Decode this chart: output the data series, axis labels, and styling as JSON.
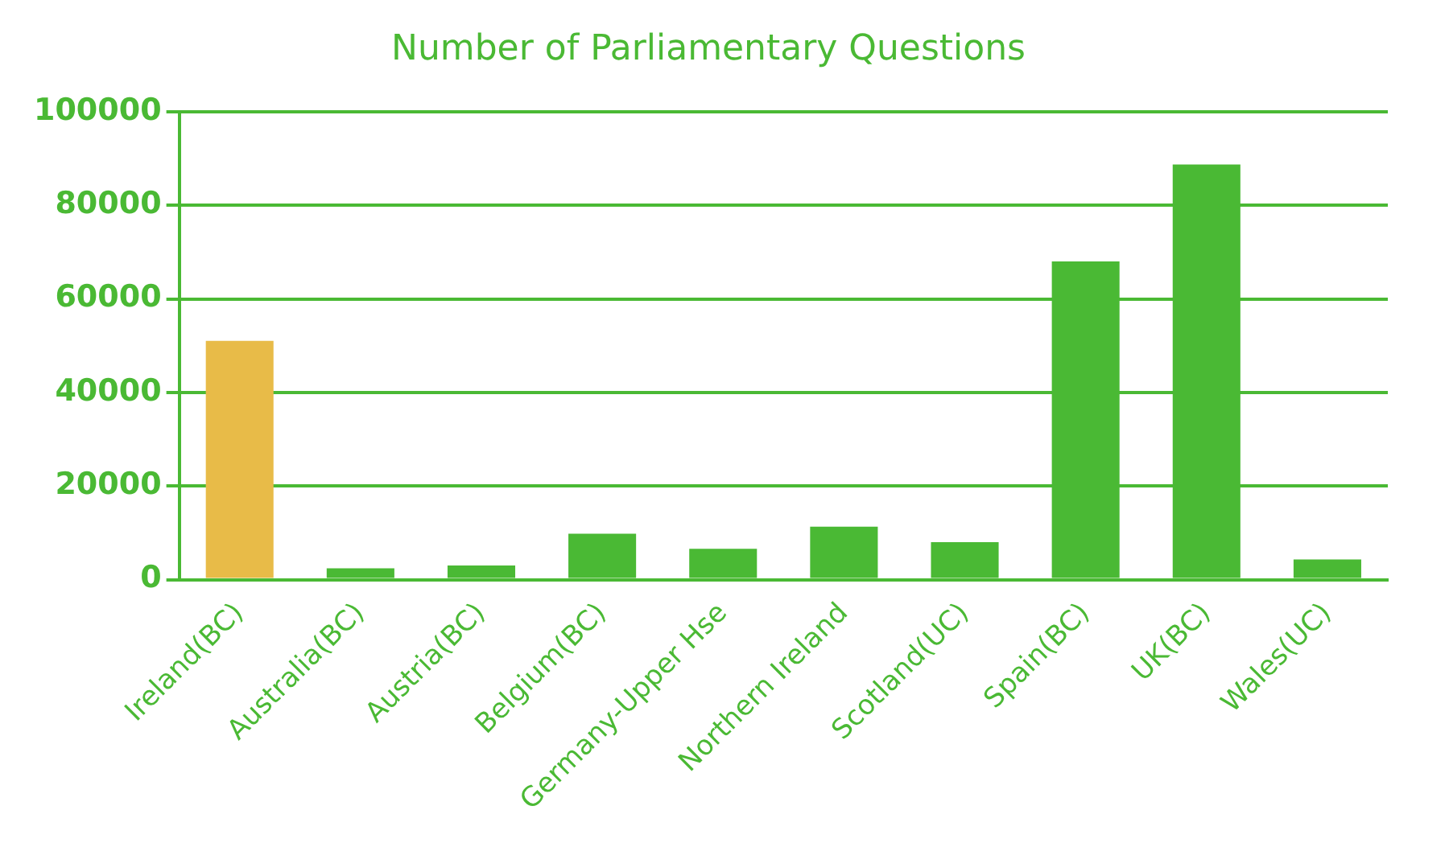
{
  "chart_data": {
    "type": "bar",
    "title": "Number of Parliamentary Questions",
    "categories": [
      "Ireland(BC)",
      "Australia(BC)",
      "Austria(BC)",
      "Belgium(BC)",
      "Germany-Upper Hse",
      "Northern Ireland",
      "Scotland(UC)",
      "Spain(BC)",
      "UK(BC)",
      "Wales(UC)"
    ],
    "values": [
      51000,
      2400,
      3000,
      9800,
      6600,
      11300,
      8000,
      68000,
      88700,
      4300
    ],
    "colors": [
      "#e8bb48",
      "#4ab934",
      "#4ab934",
      "#4ab934",
      "#4ab934",
      "#4ab934",
      "#4ab934",
      "#4ab934",
      "#4ab934",
      "#4ab934"
    ],
    "ylim": [
      0,
      100000
    ],
    "yticks": [
      0,
      20000,
      40000,
      60000,
      80000,
      100000
    ],
    "grid": "y",
    "legend": false
  }
}
